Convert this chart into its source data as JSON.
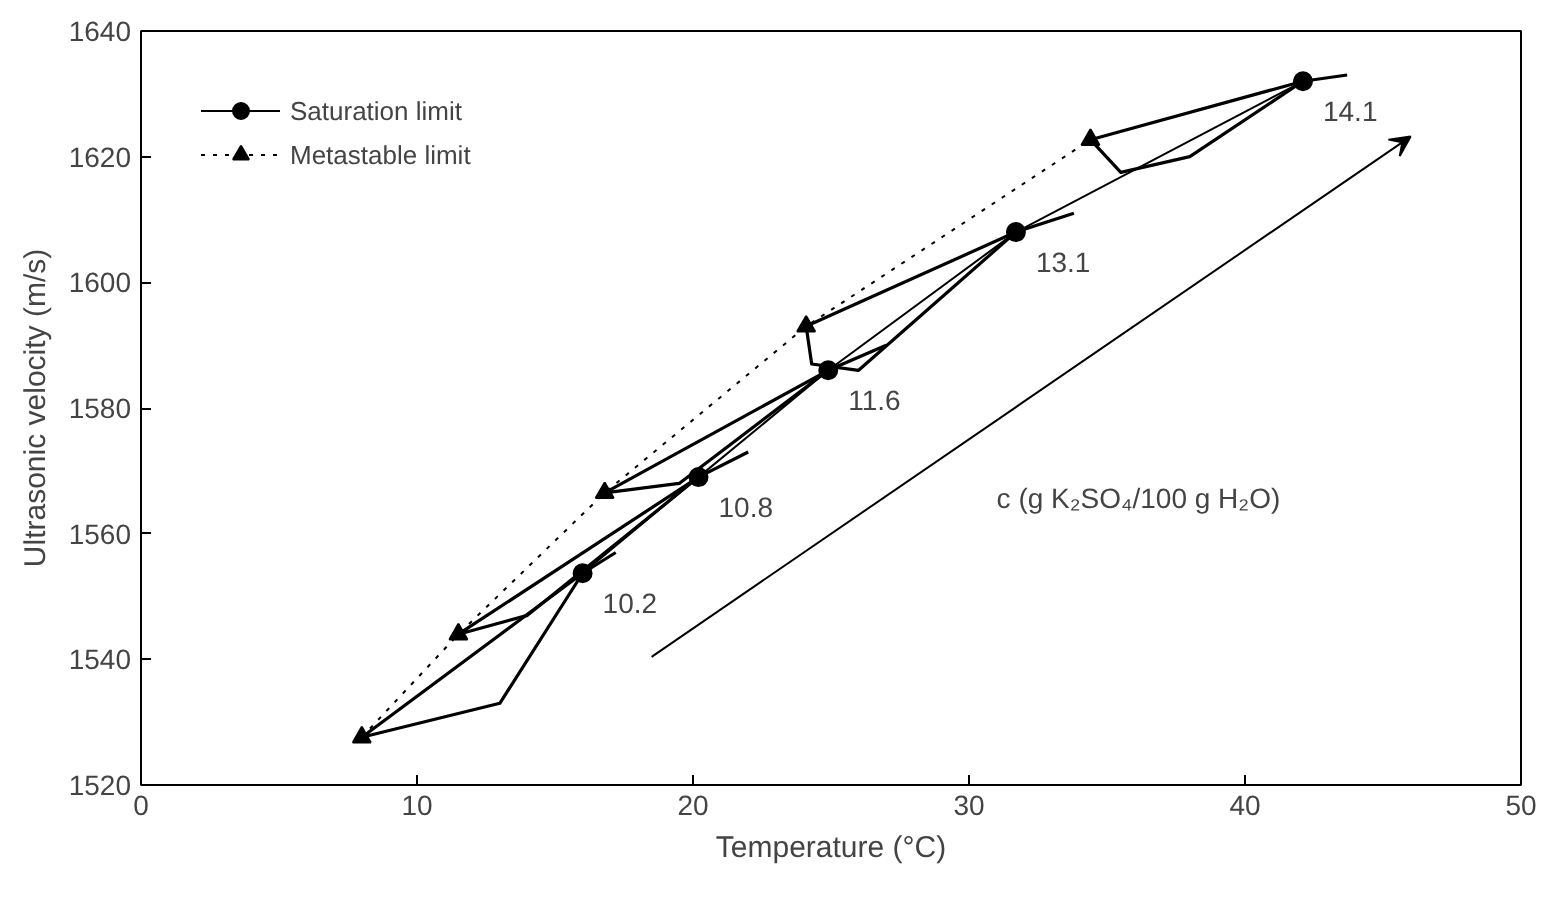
{
  "chart_data": {
    "type": "line",
    "xlabel": "Temperature (°C)",
    "ylabel": "Ultrasonic velocity (m/s)",
    "xlim": [
      0,
      50
    ],
    "xticks": [
      0,
      10,
      20,
      30,
      40,
      50
    ],
    "ylim": [
      1520,
      1640
    ],
    "yticks": [
      1520,
      1540,
      1560,
      1580,
      1600,
      1620,
      1640
    ],
    "grid": false,
    "legend": "top left",
    "series": [
      {
        "name": "Saturation limit",
        "color": "#000000",
        "marker": "circle",
        "line_style": "solid",
        "x": [
          16.0,
          20.2,
          24.9,
          31.7,
          42.1
        ],
        "values": [
          1553.7,
          1569,
          1586,
          1608,
          1632
        ]
      },
      {
        "name": "Metastable limit",
        "color": "#000000",
        "marker": "triangle",
        "line_style": "dotted",
        "x": [
          8.0,
          11.5,
          16.8,
          24.1,
          34.4
        ],
        "values": [
          1527.6,
          1544,
          1566.5,
          1593,
          1622.7
        ]
      },
      {
        "color": "#000000",
        "marker": "none",
        "line_style": "solid",
        "x": [
          17.2,
          16.0,
          8.0,
          13.0,
          16.0
        ],
        "values": [
          1557,
          1553.7,
          1527.6,
          1533,
          1553.7
        ]
      },
      {
        "color": "#000000",
        "marker": "none",
        "line_style": "solid",
        "x": [
          22.0,
          20.2,
          11.5,
          14.0,
          20.2
        ],
        "values": [
          1573,
          1569,
          1544,
          1547,
          1569
        ]
      },
      {
        "color": "#000000",
        "marker": "none",
        "line_style": "solid",
        "x": [
          27.0,
          24.9,
          16.8,
          19.5,
          24.9
        ],
        "values": [
          1590,
          1586,
          1566.5,
          1568,
          1586
        ]
      },
      {
        "color": "#000000",
        "marker": "none",
        "line_style": "solid",
        "x": [
          33.8,
          31.7,
          24.1,
          24.3,
          26.0,
          31.7
        ],
        "values": [
          1611,
          1608,
          1593,
          1587,
          1586,
          1608
        ]
      },
      {
        "color": "#000000",
        "marker": "none",
        "line_style": "solid",
        "x": [
          43.7,
          42.1,
          34.4,
          35.5,
          38.0,
          42.1
        ],
        "values": [
          1633,
          1632,
          1622.7,
          1617.5,
          1620,
          1632
        ]
      }
    ],
    "annotations": [
      {
        "text": "10.2",
        "x": 16.0,
        "y": 1553.7
      },
      {
        "text": "10.8",
        "x": 20.2,
        "y": 1569
      },
      {
        "text": "11.6",
        "x": 24.9,
        "y": 1586
      },
      {
        "text": "13.1",
        "x": 31.7,
        "y": 1608
      },
      {
        "text": "14.1",
        "x": 42.1,
        "y": 1632
      },
      "c (g K₂SO₄/100 g H₂O)"
    ]
  }
}
